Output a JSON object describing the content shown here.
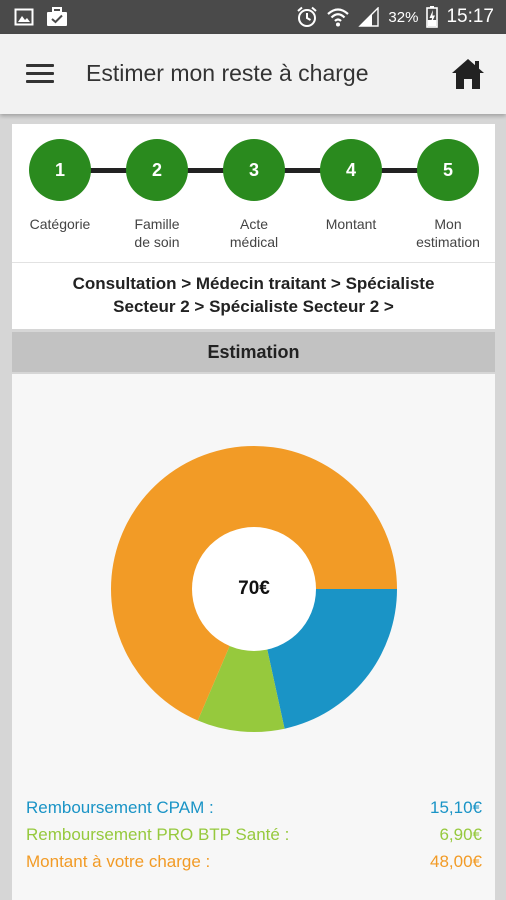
{
  "status_bar": {
    "battery_percent": "32%",
    "time": "15:17",
    "icons": [
      "image-icon",
      "briefcase-check-icon",
      "alarm-icon",
      "wifi-icon",
      "signal-icon",
      "battery-charging-icon"
    ]
  },
  "app_bar": {
    "title": "Estimer mon reste à charge",
    "menu_icon": "hamburger-menu-icon",
    "home_icon": "home-icon"
  },
  "steps": [
    {
      "number": "1",
      "label_line1": "Catégorie",
      "label_line2": ""
    },
    {
      "number": "2",
      "label_line1": "Famille",
      "label_line2": "de soin"
    },
    {
      "number": "3",
      "label_line1": "Acte",
      "label_line2": "médical"
    },
    {
      "number": "4",
      "label_line1": "Montant",
      "label_line2": ""
    },
    {
      "number": "5",
      "label_line1": "Mon",
      "label_line2": "estimation"
    }
  ],
  "breadcrumb": {
    "line1": "Consultation > Médecin traitant > Spécialiste",
    "line2": "Secteur 2 > Spécialiste Secteur 2 >"
  },
  "estimation": {
    "header": "Estimation",
    "total": "70€"
  },
  "chart_data": {
    "type": "pie",
    "total": 70,
    "slices": [
      {
        "label": "Remboursement CPAM :",
        "value": 15.1,
        "display": "15,10€",
        "color": "#1a94c6"
      },
      {
        "label": "Remboursement PRO BTP Santé :",
        "value": 6.9,
        "display": "6,90€",
        "color": "#96c93d"
      },
      {
        "label": "Montant à votre charge :",
        "value": 48.0,
        "display": "48,00€",
        "color": "#f29b26"
      }
    ]
  },
  "colors": {
    "step_green": "#2a8a1e",
    "status_bar": "#4a4a4a",
    "app_bar": "#f2f2f2"
  }
}
